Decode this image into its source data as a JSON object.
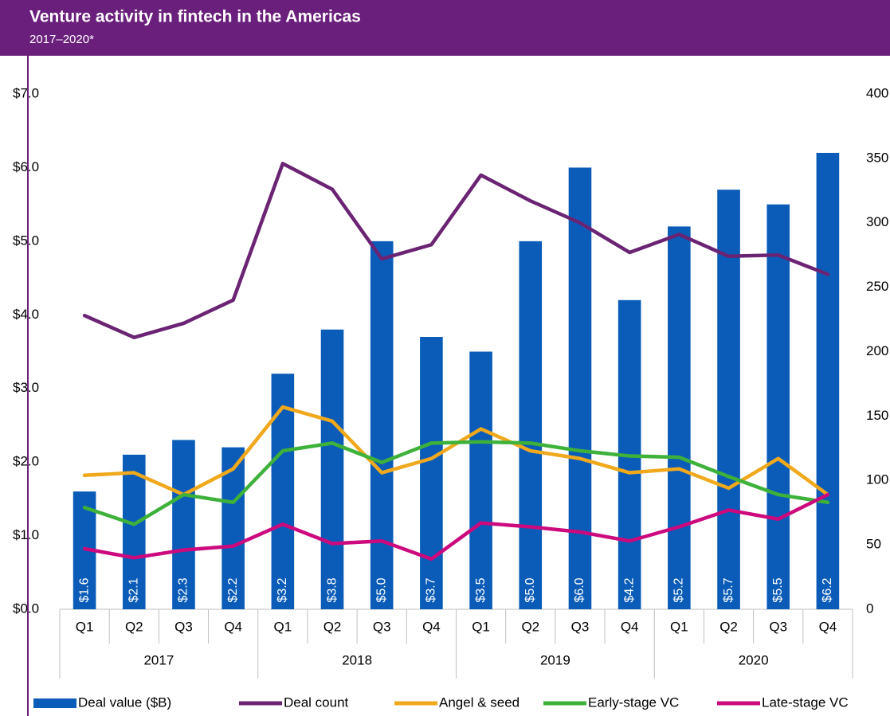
{
  "chart_data": {
    "type": "combo",
    "title": "Venture activity in fintech in the Americas",
    "subtitle": "2017–2020*",
    "categories": [
      "Q1",
      "Q2",
      "Q3",
      "Q4",
      "Q1",
      "Q2",
      "Q3",
      "Q4",
      "Q1",
      "Q2",
      "Q3",
      "Q4",
      "Q1",
      "Q2",
      "Q3",
      "Q4"
    ],
    "years": [
      "2017",
      "2018",
      "2019",
      "2020"
    ],
    "ylim": [
      0,
      7
    ],
    "yticks": [
      {
        "value": 0,
        "label": "$0.0"
      },
      {
        "value": 1,
        "label": "$1.0"
      },
      {
        "value": 2,
        "label": "$2.0"
      },
      {
        "value": 3,
        "label": "$3.0"
      },
      {
        "value": 4,
        "label": "$4.0"
      },
      {
        "value": 5,
        "label": "$5.0"
      },
      {
        "value": 6,
        "label": "$6.0"
      },
      {
        "value": 7,
        "label": "$7.0"
      }
    ],
    "y2lim": [
      0,
      400
    ],
    "y2ticks": [
      0,
      50,
      100,
      150,
      200,
      250,
      300,
      350,
      400
    ],
    "legend": "bottom",
    "series": [
      {
        "name": "Deal value ($B)",
        "type": "bar",
        "axis": "y",
        "color": "#0a5cb8",
        "values": [
          1.6,
          2.1,
          2.3,
          2.2,
          3.2,
          3.8,
          5.0,
          3.7,
          3.5,
          5.0,
          6.0,
          4.2,
          5.2,
          5.7,
          5.5,
          6.2
        ],
        "value_labels": [
          "$1.6",
          "$2.1",
          "$2.3",
          "$2.2",
          "$3.2",
          "$3.8",
          "$5.0",
          "$3.7",
          "$3.5",
          "$5.0",
          "$6.0",
          "$4.2",
          "$5.2",
          "$5.7",
          "$5.5",
          "$6.2"
        ]
      },
      {
        "name": "Deal count",
        "type": "line",
        "axis": "y2",
        "color": "#6b2374",
        "values": [
          228,
          211,
          222,
          240,
          346,
          326,
          272,
          283,
          337,
          317,
          300,
          277,
          291,
          274,
          275,
          260
        ]
      },
      {
        "name": "Angel & seed",
        "type": "line",
        "axis": "y2",
        "color": "#f0a81c",
        "values": [
          104,
          106,
          89,
          109,
          157,
          146,
          106,
          117,
          140,
          123,
          117,
          106,
          109,
          94,
          117,
          89
        ]
      },
      {
        "name": "Early-stage VC",
        "type": "line",
        "axis": "y2",
        "color": "#3db13a",
        "values": [
          79,
          66,
          89,
          83,
          123,
          129,
          114,
          129,
          130,
          129,
          123,
          119,
          118,
          103,
          89,
          83
        ]
      },
      {
        "name": "Late-stage VC",
        "type": "line",
        "axis": "y2",
        "color": "#cc0a7e",
        "values": [
          47,
          40,
          46,
          49,
          66,
          51,
          53,
          39,
          67,
          64,
          60,
          53,
          64,
          77,
          70,
          89
        ]
      }
    ]
  }
}
